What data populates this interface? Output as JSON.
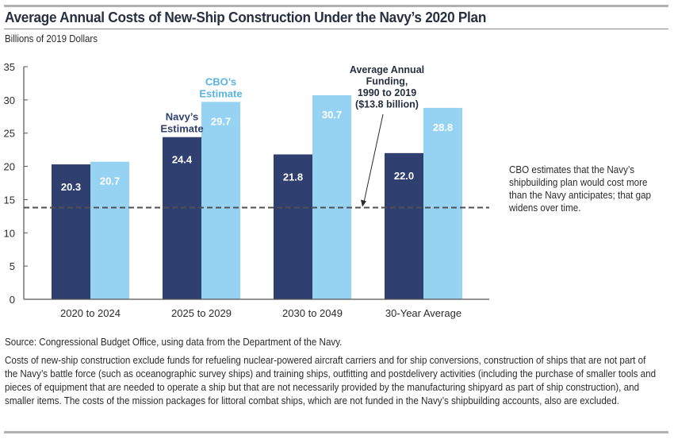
{
  "header": {
    "title": "Average Annual Costs of New-Ship Construction Under the Navy’s 2020 Plan",
    "units": "Billions of 2019 Dollars"
  },
  "side_note": "CBO estimates that the Navy’s shipbuilding plan would cost more than the Navy anticipates; that gap widens over time.",
  "footer": {
    "source": "Source: Congressional Budget Office, using data from the Department of the Navy.",
    "note": "Costs of new-ship construction exclude funds for refueling nuclear-powered aircraft carriers and for ship conversions, construction of ships that are not part of the Navy’s battle force (such as oceanographic survey ships) and training ships, outfitting and postdelivery activities (including the purchase of smaller tools and pieces of equipment that are needed to operate a ship but that are not necessarily provided by the manufacturing shipyard as part of ship construction), and smaller items. The costs of the mission packages for littoral combat ships, which are not funded in the Navy’s shipbuilding accounts, also are excluded."
  },
  "chart_data": {
    "type": "bar",
    "title": "Average Annual Costs of New-Ship Construction Under the Navy’s 2020 Plan",
    "xlabel": "",
    "ylabel": "Billions of 2019 Dollars",
    "ylim": [
      0,
      35
    ],
    "yticks": [
      0,
      5,
      10,
      15,
      20,
      25,
      30,
      35
    ],
    "grid": false,
    "categories": [
      "2020 to 2024",
      "2025 to 2029",
      "2030 to 2049",
      "30-Year Average"
    ],
    "series": [
      {
        "name": "Navy’s Estimate",
        "label_lines": [
          "Navy’s",
          "Estimate"
        ],
        "color": "#2f3f6f",
        "values": [
          20.3,
          24.4,
          21.8,
          22.0
        ],
        "value_labels": [
          "20.3",
          "24.4",
          "21.8",
          "22.0"
        ]
      },
      {
        "name": "CBO’s Estimate",
        "label_lines": [
          "CBO’s",
          "Estimate"
        ],
        "color": "#96d3f3",
        "label_color": "#5ab3e2",
        "values": [
          20.7,
          29.7,
          30.7,
          28.8
        ],
        "value_labels": [
          "20.7",
          "29.7",
          "30.7",
          "28.8"
        ]
      }
    ],
    "reference_line": {
      "value": 13.8,
      "style": "dashed",
      "color": "#505050",
      "annotation_lines": [
        "Average Annual",
        "Funding,",
        "1990 to 2019",
        "($13.8 billion)"
      ]
    },
    "legend": "inline labels above second category bars"
  }
}
